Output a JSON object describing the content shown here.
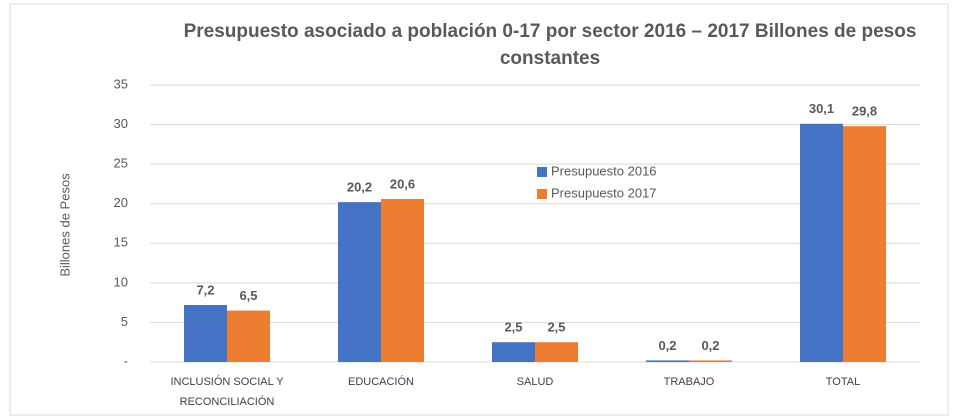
{
  "chart_data": {
    "type": "bar",
    "title": "Presupuesto asociado a población 0-17 por sector 2016 – 2017 Billones de pesos constantes",
    "ylabel": "Billones de Pesos",
    "categories": [
      "INCLUSIÓN SOCIAL Y RECONCILIACIÓN",
      "EDUCACIÓN",
      "SALUD",
      "TRABAJO",
      "TOTAL"
    ],
    "series": [
      {
        "name": "Presupuesto 2016",
        "color": "#4472c4",
        "values": [
          7.2,
          20.2,
          2.5,
          0.2,
          30.1
        ],
        "value_labels": [
          "7,2",
          "20,2",
          "2,5",
          "0,2",
          "30,1"
        ]
      },
      {
        "name": "Presupuesto 2017",
        "color": "#ed7d31",
        "values": [
          6.5,
          20.6,
          2.5,
          0.2,
          29.8
        ],
        "value_labels": [
          "6,5",
          "20,6",
          "2,5",
          "0,2",
          "29,8"
        ]
      }
    ],
    "ylim": [
      0,
      35
    ],
    "yticks": [
      {
        "value": 0,
        "label": "-"
      },
      5,
      10,
      15,
      20,
      25,
      30,
      35
    ],
    "grid": true
  }
}
